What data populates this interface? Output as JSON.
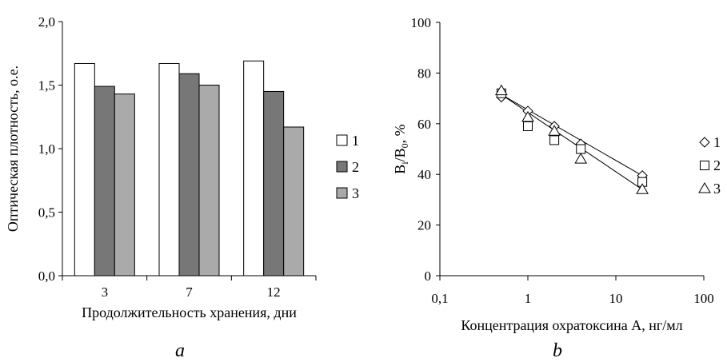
{
  "panels": {
    "a_label": "a",
    "b_label": "b"
  },
  "chart_data": [
    {
      "type": "bar",
      "panel": "a",
      "categories": [
        "3",
        "7",
        "12"
      ],
      "series": [
        {
          "name": "1",
          "values": [
            1.67,
            1.67,
            1.69
          ],
          "color": "#ffffff"
        },
        {
          "name": "2",
          "values": [
            1.49,
            1.59,
            1.45
          ],
          "color": "#777777"
        },
        {
          "name": "3",
          "values": [
            1.43,
            1.5,
            1.17
          ],
          "color": "#aaaaaa"
        }
      ],
      "xlabel": "Продолжительность хранения, дни",
      "ylabel": "Оптическая плотность, о.е.",
      "ylim": [
        0,
        2.0
      ],
      "yticks": [
        "0,0",
        "0,5",
        "1,0",
        "1,5",
        "2,0"
      ],
      "grid": false,
      "legend": "right"
    },
    {
      "type": "scatter",
      "panel": "b",
      "x_scale": "log",
      "xlim": [
        0.1,
        100
      ],
      "ylim": [
        0,
        100
      ],
      "xticks": [
        "0,1",
        "1",
        "10",
        "100"
      ],
      "yticks": [
        "0",
        "20",
        "40",
        "60",
        "80",
        "100"
      ],
      "xlabel": "Концентрация охратоксина А, нг/мл",
      "ylabel_main": "B",
      "ylabel_sub1": "i",
      "ylabel_mid": "/B",
      "ylabel_sub2": "0",
      "ylabel_tail": ", %",
      "series": [
        {
          "name": "1",
          "marker": "diamond",
          "x": [
            0.5,
            1,
            2,
            4,
            20
          ],
          "y": [
            70.5,
            65,
            59,
            52,
            39.5
          ]
        },
        {
          "name": "2",
          "marker": "square",
          "x": [
            0.5,
            1,
            2,
            4,
            20
          ],
          "y": [
            72,
            59,
            53.5,
            50,
            37
          ]
        },
        {
          "name": "3",
          "marker": "triangle",
          "x": [
            0.5,
            1,
            2,
            4,
            20
          ],
          "y": [
            73,
            62.5,
            57,
            46,
            34
          ]
        }
      ],
      "trendlines": [
        {
          "x": [
            0.5,
            20
          ],
          "y": [
            71.5,
            39.5
          ]
        },
        {
          "x": [
            0.5,
            20
          ],
          "y": [
            71.5,
            34
          ]
        }
      ],
      "grid": false,
      "legend": "right"
    }
  ]
}
